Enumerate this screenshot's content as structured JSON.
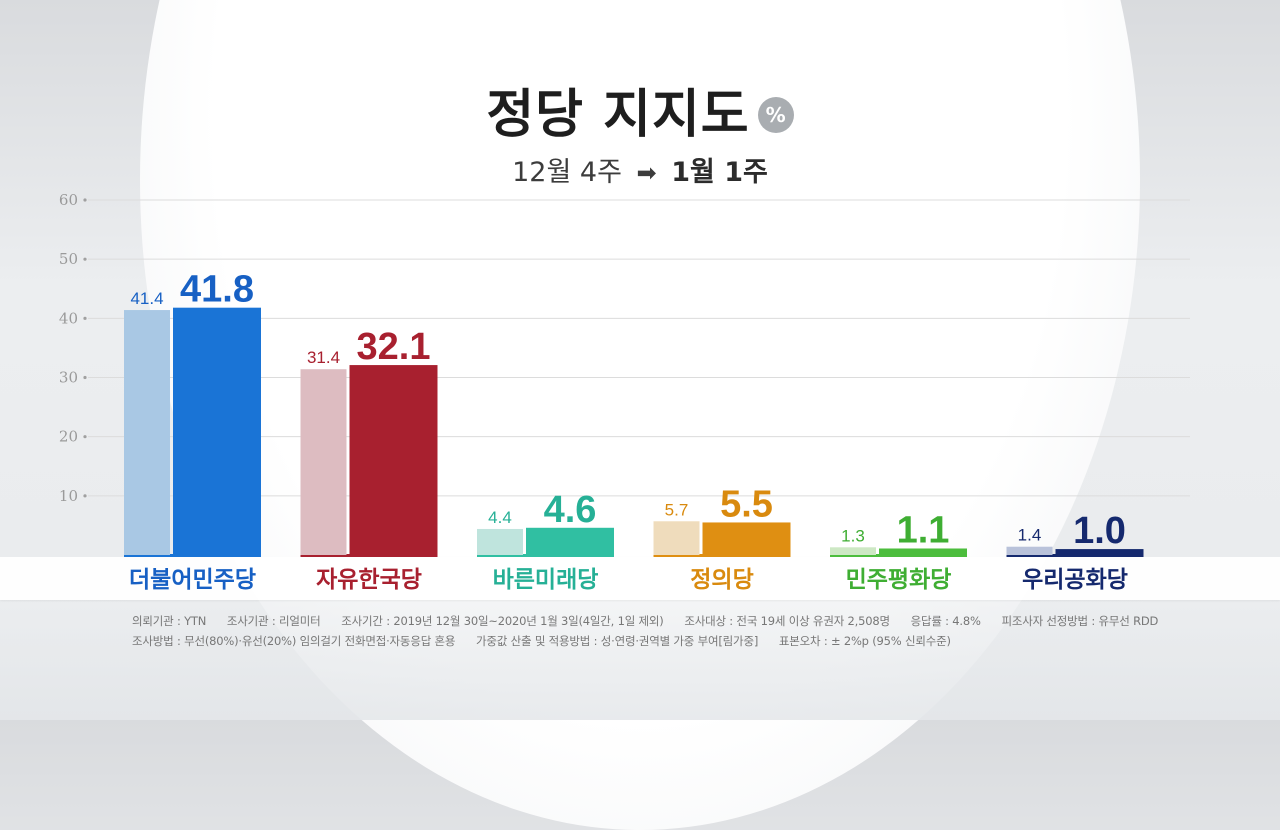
{
  "title": "정당 지지도",
  "unit_badge": "%",
  "subtitle": {
    "from": "12월 4주",
    "arrow": "➡",
    "to": "1월 1주"
  },
  "colors": {
    "더불어민주당": {
      "prev": "#a9c8e4",
      "curr": "#1a74d6",
      "label": "#1760c4"
    },
    "자유한국당": {
      "prev": "#ddbcc1",
      "curr": "#a8202f",
      "label": "#a8202f"
    },
    "바른미래당": {
      "prev": "#bfe4dd",
      "curr": "#30bfa2",
      "label": "#26b096"
    },
    "정의당": {
      "prev": "#efdcbc",
      "curr": "#df8f12",
      "label": "#d98a0e"
    },
    "민주평화당": {
      "prev": "#cde8c4",
      "curr": "#4cbd3d",
      "label": "#3fae33"
    },
    "우리공화당": {
      "prev": "#b9c2da",
      "curr": "#15296e",
      "label": "#15296e"
    }
  },
  "chart_data": {
    "type": "bar",
    "categories": [
      "더불어민주당",
      "자유한국당",
      "바른미래당",
      "정의당",
      "민주평화당",
      "우리공화당"
    ],
    "series": [
      {
        "values": [
          41.4,
          31.4,
          4.4,
          5.7,
          1.3,
          1.4
        ]
      },
      {
        "values": [
          41.8,
          32.1,
          4.6,
          5.5,
          1.1,
          1.0
        ]
      }
    ],
    "value_labels": [
      [
        "41.4",
        "31.4",
        "4.4",
        "5.7",
        "1.3",
        "1.4"
      ],
      [
        "41.8",
        "32.1",
        "4.6",
        "5.5",
        "1.1",
        "1.0"
      ]
    ],
    "y_ticks": [
      10,
      20,
      30,
      40,
      50,
      60
    ],
    "ylim": [
      0,
      60
    ],
    "grid": true,
    "title": "정당 지지도",
    "xlabel": "",
    "ylabel": ""
  },
  "footnotes": [
    "의뢰기관 : YTN      조사기관 : 리얼미터      조사기간 : 2019년 12월 30일~2020년 1월 3일(4일간, 1일 제외)      조사대상 : 전국 19세 이상 유권자 2,508명      응답률 : 4.8%      피조사자 선정방법 : 유무선 RDD",
    "조사방법 : 무선(80%)·유선(20%) 임의걸기 전화면접·자동응답 혼용      가중값 산출 및 적용방법 : 성·연령·권역별 가중 부여[림가중]      표본오차 : ± 2%p (95% 신뢰수준)"
  ]
}
